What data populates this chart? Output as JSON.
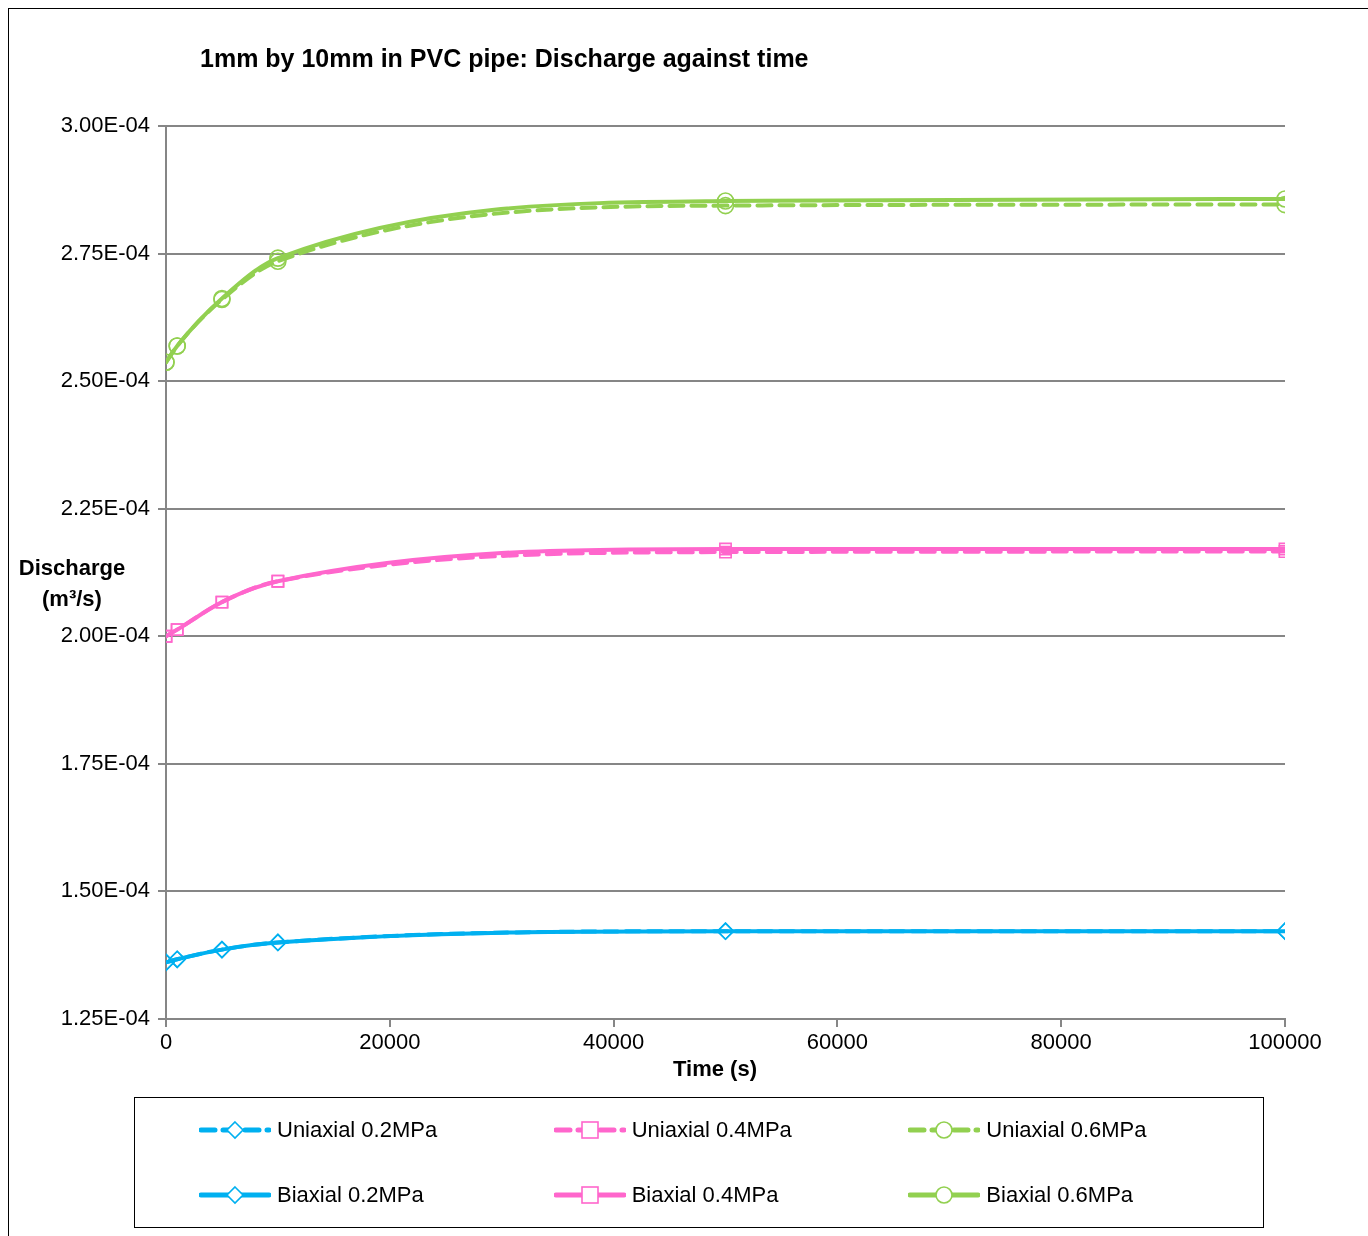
{
  "chart_data": {
    "type": "line",
    "title": "1mm by 10mm in PVC pipe: Discharge against time",
    "xlabel": "Time (s)",
    "ylabel": "Discharge (m³/s)",
    "x": [
      0,
      1000,
      5000,
      10000,
      50000,
      100000
    ],
    "xlim": [
      0,
      100000
    ],
    "xticks": [
      0,
      20000,
      40000,
      60000,
      80000,
      100000
    ],
    "ylim": [
      0.000125,
      0.0003
    ],
    "yticks": [
      {
        "value": 0.000125,
        "label": "1.25E-04"
      },
      {
        "value": 0.00015,
        "label": "1.50E-04"
      },
      {
        "value": 0.000175,
        "label": "1.75E-04"
      },
      {
        "value": 0.0002,
        "label": "2.00E-04"
      },
      {
        "value": 0.000225,
        "label": "2.25E-04"
      },
      {
        "value": 0.00025,
        "label": "2.50E-04"
      },
      {
        "value": 0.000275,
        "label": "2.75E-04"
      },
      {
        "value": 0.0003,
        "label": "3.00E-04"
      }
    ],
    "grid": "y",
    "legend": "bottom",
    "series": [
      {
        "name": "Uniaxial 0.2MPa",
        "color": "#00b0f0",
        "marker": "diamond",
        "line_style": "dashed",
        "values": [
          0.0001361,
          0.0001367,
          0.0001386,
          0.00014,
          0.0001422,
          0.0001422
        ]
      },
      {
        "name": "Uniaxial 0.4MPa",
        "color": "#ff66cc",
        "marker": "square",
        "line_style": "dashed",
        "values": [
          0.0002,
          0.0002013,
          0.0002067,
          0.0002108,
          0.0002165,
          0.0002166
        ]
      },
      {
        "name": "Uniaxial 0.6MPa",
        "color": "#92d050",
        "marker": "circle",
        "line_style": "dashed",
        "values": [
          0.0002537,
          0.0002569,
          0.000266,
          0.0002735,
          0.0002844,
          0.0002846
        ]
      },
      {
        "name": "Biaxial 0.2MPa",
        "color": "#00b0f0",
        "marker": "diamond",
        "line_style": "solid",
        "values": [
          0.0001361,
          0.0001367,
          0.0001386,
          0.00014,
          0.0001422,
          0.0001422
        ]
      },
      {
        "name": "Biaxial 0.4MPa",
        "color": "#ff66cc",
        "marker": "square",
        "line_style": "solid",
        "values": [
          0.0002,
          0.0002013,
          0.0002067,
          0.0002108,
          0.0002171,
          0.0002171
        ]
      },
      {
        "name": "Biaxial 0.6MPa",
        "color": "#92d050",
        "marker": "circle",
        "line_style": "solid",
        "values": [
          0.0002537,
          0.0002569,
          0.0002662,
          0.0002741,
          0.0002853,
          0.0002857
        ]
      }
    ]
  }
}
